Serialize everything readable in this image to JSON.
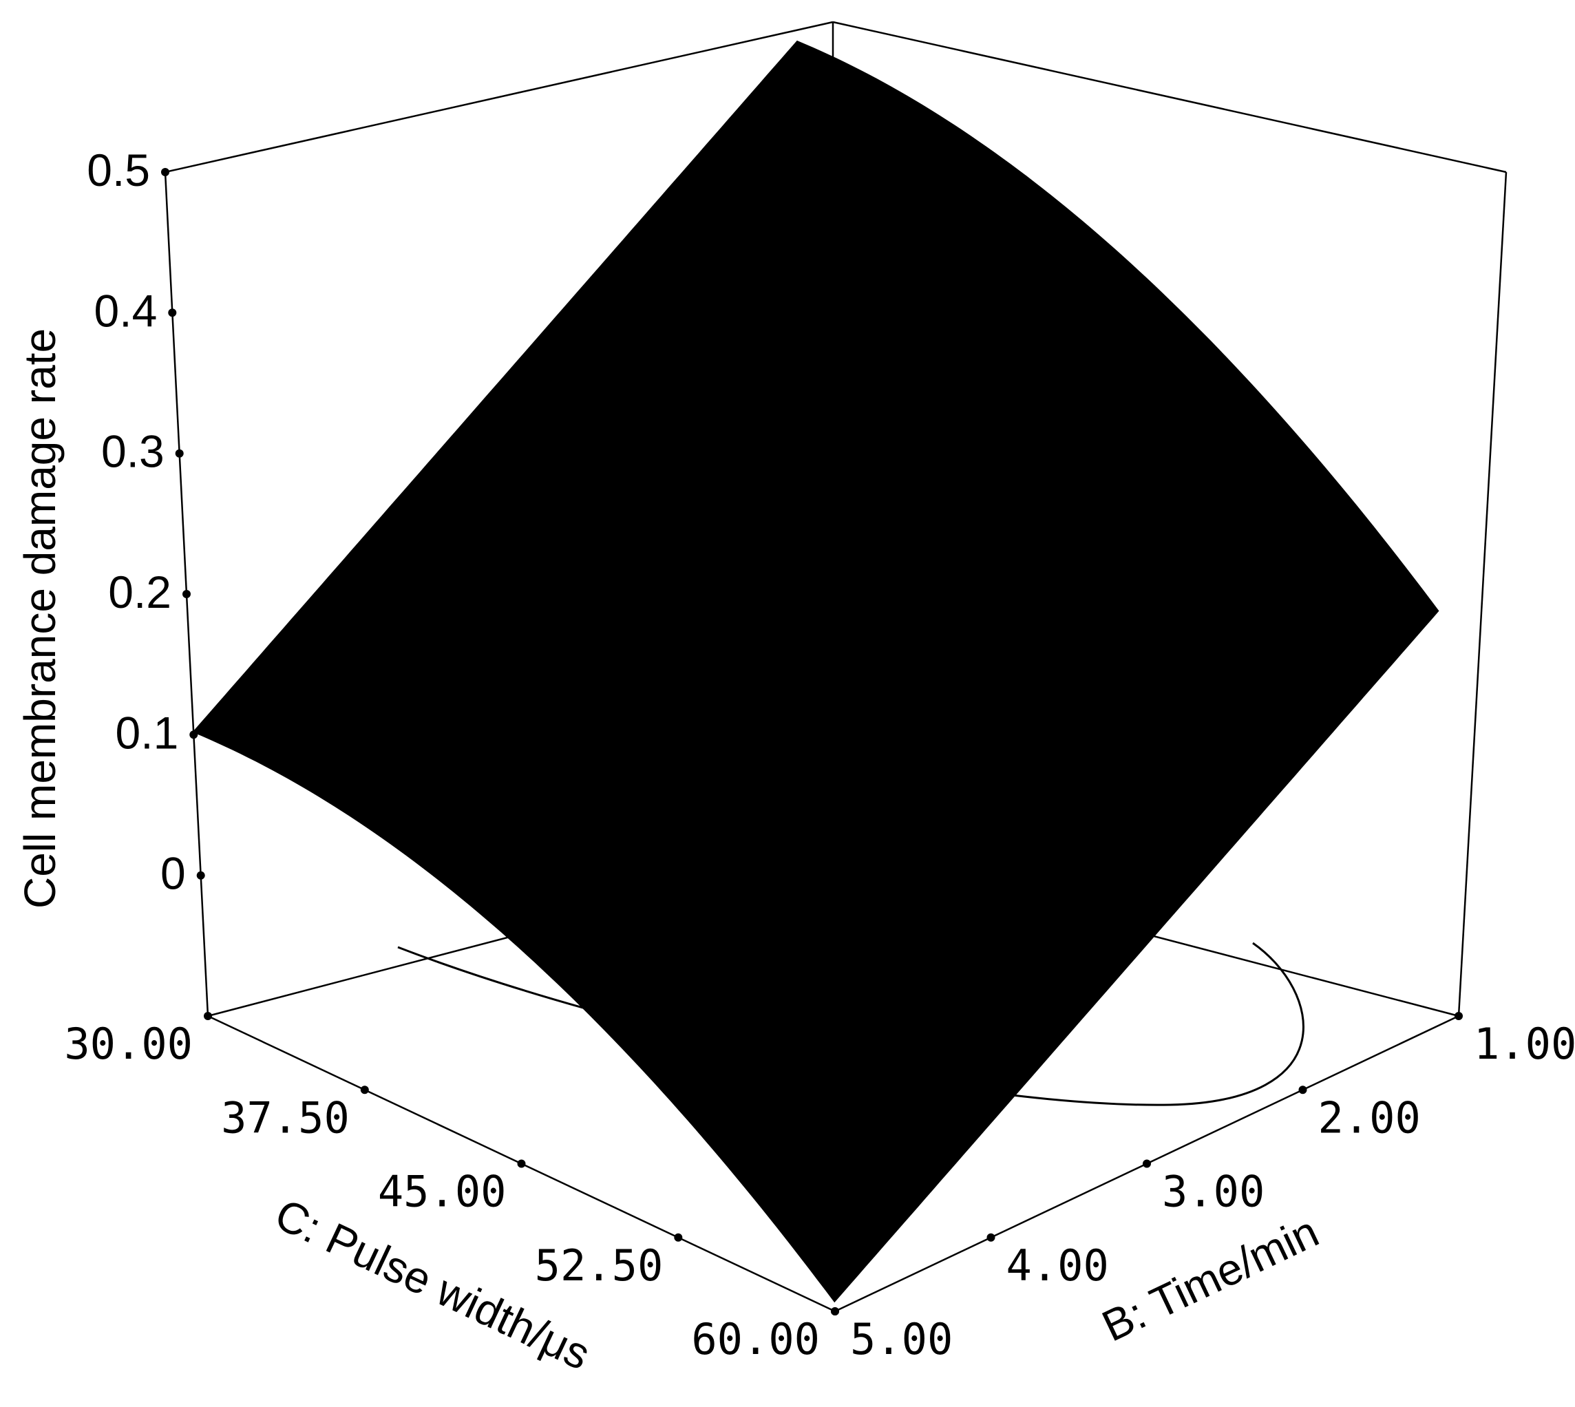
{
  "chart_data": {
    "type": "surface",
    "title": "",
    "zlabel": "Cell membrance damage rate",
    "xlabel": "C: Pulse width/μs",
    "ylabel": "B: Time/min",
    "x_ticks": [
      "30.00",
      "37.50",
      "45.00",
      "52.50",
      "60.00"
    ],
    "y_ticks": [
      "1.00",
      "2.00",
      "3.00",
      "4.00",
      "5.00"
    ],
    "z_ticks": [
      "0",
      "0.1",
      "0.2",
      "0.3",
      "0.4",
      "0.5"
    ],
    "xlim": [
      30,
      60
    ],
    "ylim": [
      1,
      5
    ],
    "zlim": [
      -0.1,
      0.5
    ],
    "grid": false,
    "surface_color": "#000000",
    "surface_corners": [
      {
        "x": 30,
        "y": 5,
        "z": 0.102
      },
      {
        "x": 30,
        "y": 1,
        "z": 0.383
      },
      {
        "x": 60,
        "y": 1,
        "z": 0.188
      },
      {
        "x": 60,
        "y": 5,
        "z": -0.093
      }
    ]
  }
}
